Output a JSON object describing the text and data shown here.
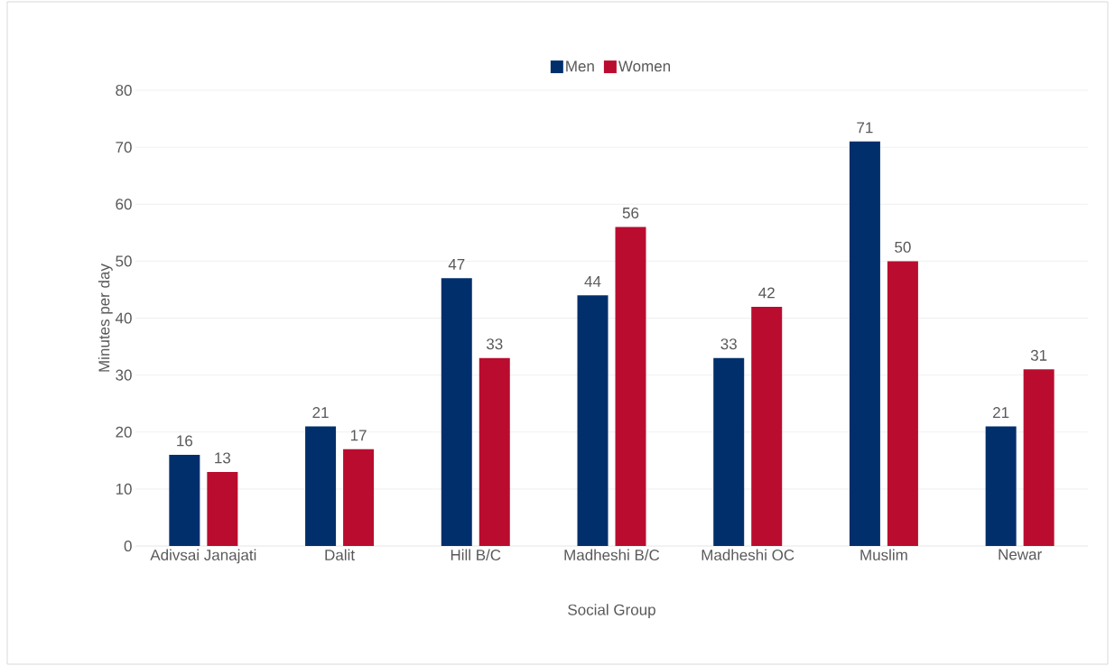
{
  "chart_data": {
    "type": "bar",
    "xlabel": "Social Group",
    "ylabel": "Minutes per day",
    "categories": [
      "Adivsai Janajati",
      "Dalit",
      "Hill B/C",
      "Madheshi B/C",
      "Madheshi OC",
      "Muslim",
      "Newar"
    ],
    "series": [
      {
        "name": "Men",
        "color": "#002f6c",
        "values": [
          16,
          21,
          47,
          44,
          33,
          71,
          21
        ]
      },
      {
        "name": "Women",
        "color": "#ba0c2f",
        "values": [
          13,
          17,
          33,
          56,
          42,
          50,
          31
        ]
      }
    ],
    "ylim": [
      0,
      80
    ],
    "yticks": [
      0,
      10,
      20,
      30,
      40,
      50,
      60,
      70,
      80
    ],
    "grid": "y",
    "legend": "top",
    "data_labels": true
  }
}
